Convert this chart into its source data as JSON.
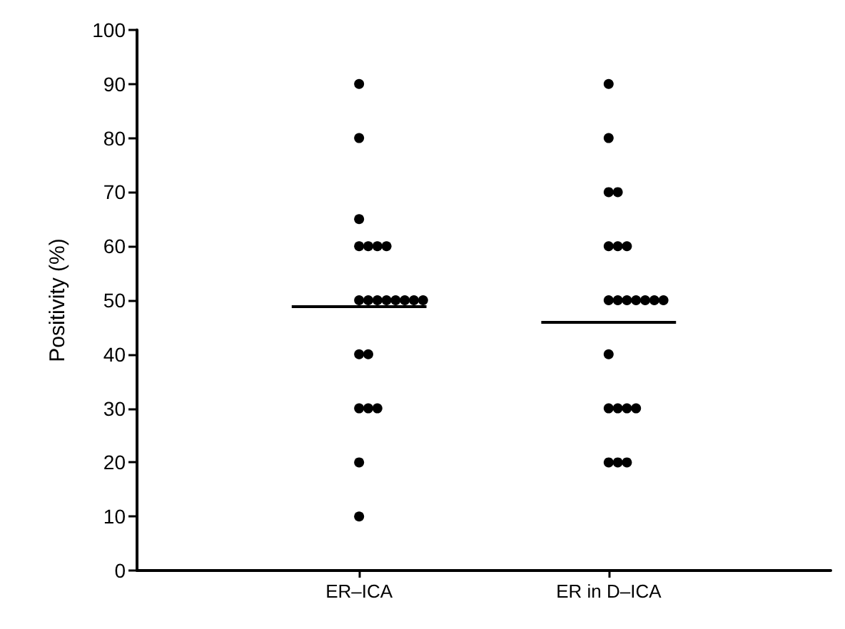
{
  "chart_data": {
    "type": "scatter",
    "ylabel": "Positivity (%)",
    "categories": [
      "ER–ICA",
      "ER in D–ICA"
    ],
    "ylim": [
      0,
      100
    ],
    "yticks": [
      0,
      10,
      20,
      30,
      40,
      50,
      60,
      70,
      80,
      90,
      100
    ],
    "grid": false,
    "ref_lines": [
      {
        "axis": "y",
        "value": 49,
        "color": "#000000"
      },
      {
        "axis": "y",
        "value": 46,
        "color": "#000000"
      }
    ],
    "series": [
      {
        "type": "scatter",
        "marker": "circle",
        "color": "#000000",
        "x": [
          "ER–ICA",
          "ER–ICA",
          "ER–ICA",
          "ER–ICA",
          "ER–ICA",
          "ER–ICA",
          "ER–ICA",
          "ER–ICA",
          "ER–ICA",
          "ER–ICA",
          "ER–ICA",
          "ER–ICA",
          "ER–ICA",
          "ER–ICA",
          "ER–ICA",
          "ER–ICA",
          "ER–ICA",
          "ER–ICA",
          "ER–ICA",
          "ER–ICA",
          "ER–ICA",
          "ER–ICA",
          "ER in D–ICA",
          "ER in D–ICA",
          "ER in D–ICA",
          "ER in D–ICA",
          "ER in D–ICA",
          "ER in D–ICA",
          "ER in D–ICA",
          "ER in D–ICA",
          "ER in D–ICA",
          "ER in D–ICA",
          "ER in D–ICA",
          "ER in D–ICA",
          "ER in D–ICA",
          "ER in D–ICA",
          "ER in D–ICA",
          "ER in D–ICA",
          "ER in D–ICA",
          "ER in D–ICA",
          "ER in D–ICA",
          "ER in D–ICA",
          "ER in D–ICA",
          "ER in D–ICA"
        ],
        "values": [
          90,
          80,
          65,
          60,
          60,
          60,
          60,
          50,
          50,
          50,
          50,
          50,
          50,
          50,
          50,
          40,
          40,
          30,
          30,
          30,
          20,
          10,
          90,
          80,
          70,
          70,
          60,
          60,
          60,
          50,
          50,
          50,
          50,
          50,
          50,
          50,
          40,
          30,
          30,
          30,
          30,
          20,
          20,
          20
        ]
      }
    ]
  }
}
